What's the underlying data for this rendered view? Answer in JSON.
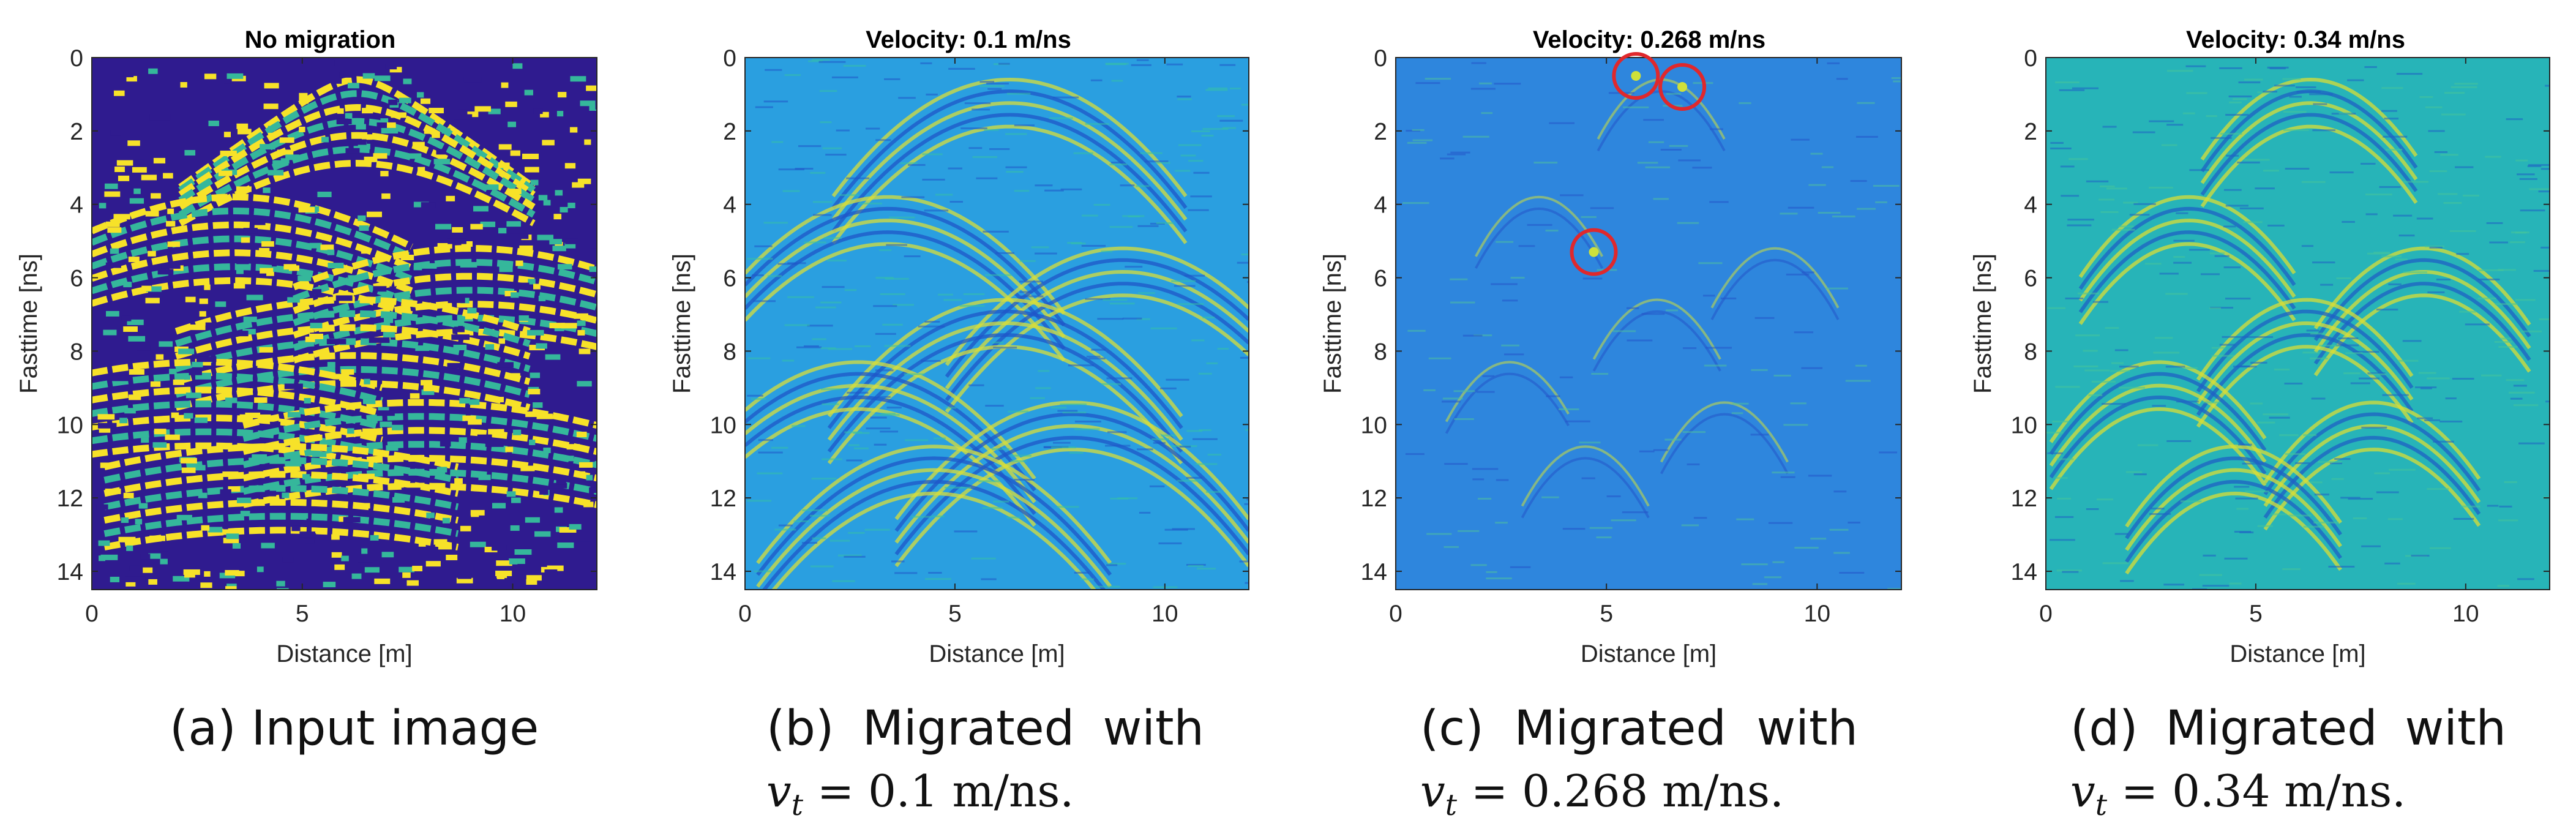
{
  "figure": {
    "panels": [
      {
        "id": "a",
        "caption": {
          "label": "(a)",
          "text": "Input image"
        },
        "velocity": null,
        "style": "raw",
        "colors": {
          "bg": "#2f1b8f",
          "mid": "#35b79b",
          "hi": "#f7e229"
        },
        "markers": []
      },
      {
        "id": "b",
        "caption": {
          "label": "(b)",
          "word1": "Migrated",
          "word2": "with",
          "var": "v",
          "sub": "t",
          "equals": "=",
          "value": "0.1",
          "unit": "m/ns."
        },
        "velocity": 0.1,
        "style": "migrated",
        "colors": {
          "bg": "#2a9fe0",
          "lo": "#1f55c8",
          "hi": "#d8dd3a",
          "mid": "#35c0a8"
        },
        "markers": []
      },
      {
        "id": "c",
        "caption": {
          "label": "(c)",
          "word1": "Migrated",
          "word2": "with",
          "var": "v",
          "sub": "t",
          "equals": "=",
          "value": "0.268",
          "unit": "m/ns."
        },
        "velocity": 0.268,
        "style": "focused",
        "colors": {
          "bg": "#2e86dd",
          "lo": "#2455c8",
          "hi": "#cfe03a",
          "mid": "#4fbf9f",
          "marker": "#e0282c"
        },
        "markers": [
          {
            "distance_m": 5.7,
            "time_ns": 0.5
          },
          {
            "distance_m": 6.8,
            "time_ns": 0.8
          },
          {
            "distance_m": 4.7,
            "time_ns": 5.3
          }
        ]
      },
      {
        "id": "d",
        "caption": {
          "label": "(d)",
          "word1": "Migrated",
          "word2": "with",
          "var": "v",
          "sub": "t",
          "equals": "=",
          "value": "0.34",
          "unit": "m/ns."
        },
        "velocity": 0.34,
        "style": "over",
        "colors": {
          "bg": "#27b4b8",
          "lo": "#1f60c4",
          "hi": "#dade36",
          "mid": "#46c59a"
        },
        "markers": []
      }
    ]
  },
  "chart_data": [
    {
      "type": "heatmap",
      "title": "No migration",
      "xlabel": "Distance [m]",
      "ylabel": "Fasttime [ns]",
      "xlim": [
        0,
        12
      ],
      "ylim": [
        0,
        14.5
      ],
      "y_reversed": true,
      "xticks": [
        0,
        5,
        10
      ],
      "yticks": [
        0,
        2,
        4,
        6,
        8,
        10,
        12,
        14
      ],
      "colormap": "parula",
      "hyperbola_apexes": [
        {
          "distance_m": 6.3,
          "time_ns": 0.6
        },
        {
          "distance_m": 3.4,
          "time_ns": 3.8
        },
        {
          "distance_m": 9.0,
          "time_ns": 5.2
        },
        {
          "distance_m": 6.2,
          "time_ns": 6.6
        },
        {
          "distance_m": 2.7,
          "time_ns": 8.3
        },
        {
          "distance_m": 7.8,
          "time_ns": 9.4
        },
        {
          "distance_m": 4.5,
          "time_ns": 10.6
        }
      ]
    },
    {
      "type": "heatmap",
      "title": "Velocity: 0.1 m/ns",
      "xlabel": "Distance [m]",
      "ylabel": "Fasttime [ns]",
      "xlim": [
        0,
        12
      ],
      "ylim": [
        0,
        14.5
      ],
      "y_reversed": true,
      "xticks": [
        0,
        5,
        10
      ],
      "yticks": [
        0,
        2,
        4,
        6,
        8,
        10,
        12,
        14
      ],
      "colormap": "parula",
      "velocity_m_per_ns": 0.1
    },
    {
      "type": "heatmap",
      "title": "Velocity: 0.268 m/ns",
      "xlabel": "Distance [m]",
      "ylabel": "Fasttime [ns]",
      "xlim": [
        0,
        12
      ],
      "ylim": [
        0,
        14.5
      ],
      "y_reversed": true,
      "xticks": [
        0,
        5,
        10
      ],
      "yticks": [
        0,
        2,
        4,
        6,
        8,
        10,
        12,
        14
      ],
      "colormap": "parula",
      "velocity_m_per_ns": 0.268,
      "circled_points": [
        {
          "distance_m": 5.7,
          "time_ns": 0.5
        },
        {
          "distance_m": 6.8,
          "time_ns": 0.8
        },
        {
          "distance_m": 4.7,
          "time_ns": 5.3
        }
      ]
    },
    {
      "type": "heatmap",
      "title": "Velocity: 0.34 m/ns",
      "xlabel": "Distance [m]",
      "ylabel": "Fasttime [ns]",
      "xlim": [
        0,
        12
      ],
      "ylim": [
        0,
        14.5
      ],
      "y_reversed": true,
      "xticks": [
        0,
        5,
        10
      ],
      "yticks": [
        0,
        2,
        4,
        6,
        8,
        10,
        12,
        14
      ],
      "colormap": "parula",
      "velocity_m_per_ns": 0.34
    }
  ]
}
